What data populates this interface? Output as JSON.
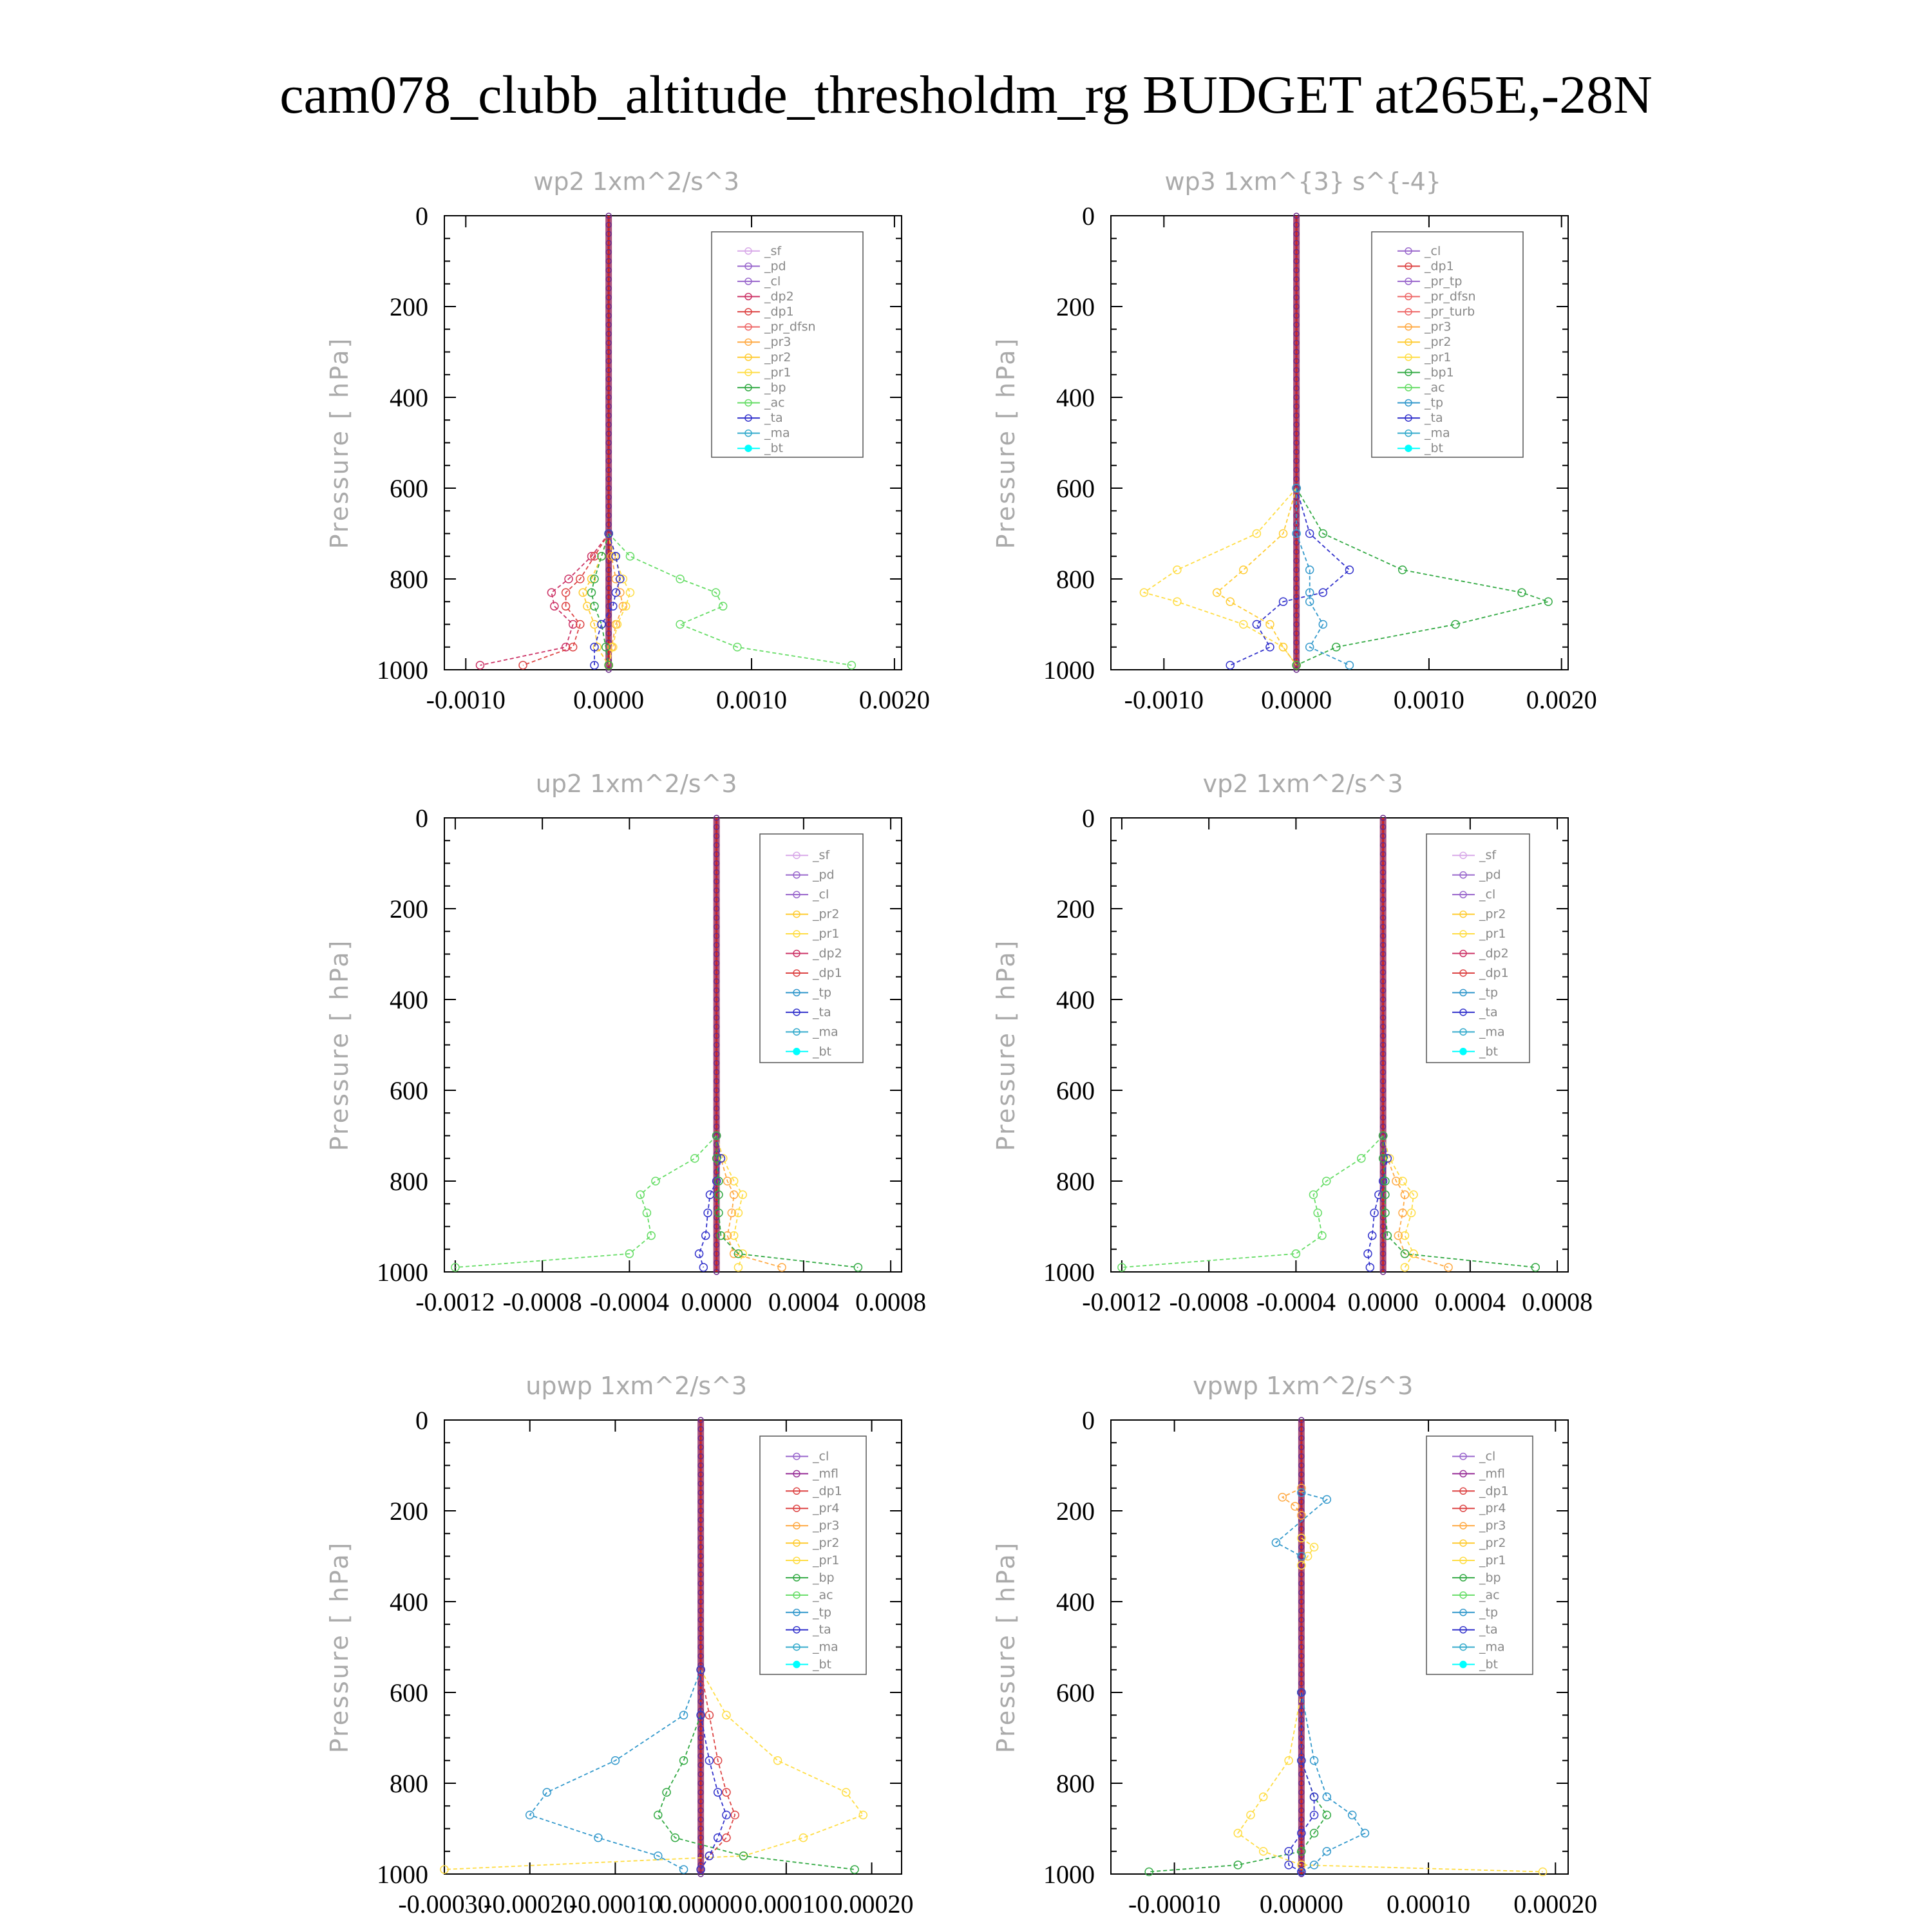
{
  "title": "cam078_clubb_altitude_thresholdm_rg  BUDGET at265E,-28N",
  "colors": {
    "sf": "#d8a8e8",
    "pd": "#9966cc",
    "cl": "#9966cc",
    "mfl": "#993399",
    "dp2": "#cc3366",
    "dp1": "#dd4444",
    "pr_dfsn": "#ee6666",
    "pr_tp": "#9966cc",
    "pr_turb": "#ee6666",
    "pr4": "#dd4444",
    "pr3": "#ffaa44",
    "pr2": "#ffcc33",
    "pr1": "#ffdd44",
    "bp": "#33aa44",
    "bp1": "#33aa44",
    "ac": "#66dd66",
    "tp": "#3399cc",
    "ta": "#3333cc",
    "ma": "#33aacc",
    "bt": "#00ffff",
    "axis": "#000000"
  },
  "chart_data": [
    {
      "type": "line",
      "title": "wp2   1xm^2/s^3",
      "ylabel": "Pressure [ hPa]",
      "yticks": [
        "0",
        "200",
        "400",
        "600",
        "800",
        "1000"
      ],
      "xticks": [
        "-0.0010",
        "0.0000",
        "0.0010",
        "0.0020"
      ],
      "xtick_values": [
        -0.001,
        0,
        0.001,
        0.002
      ],
      "xlim": [
        -0.00115,
        0.00205
      ],
      "ylim": [
        0,
        1000
      ],
      "legend": [
        "_sf",
        "_pd",
        "_cl",
        "_dp2",
        "_dp1",
        "_pr_dfsn",
        "_pr3",
        "_pr2",
        "_pr1",
        "_bp",
        "_ac",
        "_ta",
        "_ma",
        "_bt"
      ],
      "pressure": [
        700,
        750,
        800,
        830,
        860,
        900,
        950,
        990
      ],
      "series": [
        {
          "name": "_dp2",
          "color_key": "dp2",
          "x": [
            0,
            -0.00012,
            -0.00028,
            -0.0004,
            -0.00038,
            -0.00025,
            -0.0003,
            -0.0009
          ]
        },
        {
          "name": "_dp1",
          "color_key": "dp1",
          "x": [
            0,
            -0.0001,
            -0.0002,
            -0.0003,
            -0.0003,
            -0.0002,
            -0.00025,
            -0.0006
          ]
        },
        {
          "name": "_pr3",
          "color_key": "pr3",
          "x": [
            0,
            2e-05,
            5e-05,
            8e-05,
            0.0001,
            5e-05,
            2e-05,
            0
          ]
        },
        {
          "name": "_pr2",
          "color_key": "pr2",
          "x": [
            0,
            -5e-05,
            -0.00012,
            -0.00018,
            -0.00015,
            -0.0001,
            -8e-05,
            0
          ]
        },
        {
          "name": "_pr1",
          "color_key": "pr1",
          "x": [
            0,
            4e-05,
            0.0001,
            0.00015,
            0.00012,
            6e-05,
            3e-05,
            0
          ]
        },
        {
          "name": "_bp",
          "color_key": "bp",
          "x": [
            0,
            -5e-05,
            -0.0001,
            -0.00012,
            -0.0001,
            -5e-05,
            -2e-05,
            0
          ]
        },
        {
          "name": "_ac",
          "color_key": "ac",
          "x": [
            0,
            0.00015,
            0.0005,
            0.00075,
            0.0008,
            0.0005,
            0.0009,
            0.0017
          ]
        },
        {
          "name": "_ta",
          "color_key": "ta",
          "x": [
            0,
            5e-05,
            8e-05,
            5e-05,
            3e-05,
            -5e-05,
            -0.0001,
            -0.0001
          ]
        }
      ]
    },
    {
      "type": "line",
      "title": "wp3   1xm^{3} s^{-4}",
      "ylabel": "Pressure [ hPa]",
      "yticks": [
        "0",
        "200",
        "400",
        "600",
        "800",
        "1000"
      ],
      "xticks": [
        "-0.0010",
        "0.0000",
        "0.0010",
        "0.0020"
      ],
      "xtick_values": [
        -0.001,
        0,
        0.001,
        0.002
      ],
      "xlim": [
        -0.0014,
        0.00205
      ],
      "ylim": [
        0,
        1000
      ],
      "legend": [
        "_cl",
        "_dp1",
        "_pr_tp",
        "_pr_dfsn",
        "_pr_turb",
        "_pr3",
        "_pr2",
        "_pr1",
        "_bp1",
        "_ac",
        "_tp",
        "_ta",
        "_ma",
        "_bt"
      ],
      "pressure": [
        600,
        700,
        780,
        830,
        850,
        900,
        950,
        990
      ],
      "series": [
        {
          "name": "_pr1",
          "color_key": "pr1",
          "x": [
            0,
            -0.0003,
            -0.0009,
            -0.00115,
            -0.0009,
            -0.0004,
            -0.0001,
            0
          ]
        },
        {
          "name": "_pr2",
          "color_key": "pr2",
          "x": [
            0,
            -0.0001,
            -0.0004,
            -0.0006,
            -0.0005,
            -0.0002,
            -0.0001,
            0
          ]
        },
        {
          "name": "_bp1",
          "color_key": "bp1",
          "x": [
            0,
            0.0002,
            0.0008,
            0.0017,
            0.0019,
            0.0012,
            0.0003,
            0
          ]
        },
        {
          "name": "_ta",
          "color_key": "ta",
          "x": [
            0,
            0.0001,
            0.0004,
            0.0002,
            -0.0001,
            -0.0003,
            -0.0002,
            -0.0005
          ]
        },
        {
          "name": "_tp",
          "color_key": "tp",
          "x": [
            0,
            0,
            0.0001,
            0.0001,
            0.0001,
            0.0002,
            0.0001,
            0.0004
          ]
        }
      ]
    },
    {
      "type": "line",
      "title": "up2   1xm^2/s^3",
      "ylabel": "Pressure [ hPa]",
      "yticks": [
        "0",
        "200",
        "400",
        "600",
        "800",
        "1000"
      ],
      "xticks": [
        "-0.0012",
        "-0.0008",
        "-0.0004",
        "0.0000",
        "0.0004",
        "0.0008"
      ],
      "xtick_values": [
        -0.0012,
        -0.0008,
        -0.0004,
        0,
        0.0004,
        0.0008
      ],
      "xlim": [
        -0.00125,
        0.00085
      ],
      "ylim": [
        0,
        1000
      ],
      "legend": [
        "_sf",
        "_pd",
        "_cl",
        "_pr2",
        "_pr1",
        "_dp2",
        "_dp1",
        "_tp",
        "_ta",
        "_ma",
        "_bt"
      ],
      "pressure": [
        700,
        750,
        800,
        830,
        870,
        920,
        960,
        990
      ],
      "series": [
        {
          "name": "_dp1",
          "color_key": "ac",
          "x": [
            0,
            -0.0001,
            -0.00028,
            -0.00035,
            -0.00032,
            -0.0003,
            -0.0004,
            -0.0012
          ]
        },
        {
          "name": "_pr1",
          "color_key": "pr1",
          "x": [
            0,
            3e-05,
            8e-05,
            0.00012,
            0.0001,
            8e-05,
            0.00012,
            0.0001
          ]
        },
        {
          "name": "_pr2",
          "color_key": "pr3",
          "x": [
            0,
            2e-05,
            5e-05,
            8e-05,
            7e-05,
            5e-05,
            8e-05,
            0.0003
          ]
        },
        {
          "name": "_ta",
          "color_key": "ta",
          "x": [
            0,
            2e-05,
            0,
            -3e-05,
            -4e-05,
            -5e-05,
            -8e-05,
            -6e-05
          ]
        },
        {
          "name": "_dp2",
          "color_key": "bp",
          "x": [
            0,
            0,
            1e-05,
            1e-05,
            1e-05,
            2e-05,
            0.0001,
            0.00065
          ]
        }
      ]
    },
    {
      "type": "line",
      "title": "vp2   1xm^2/s^3",
      "ylabel": "Pressure [ hPa]",
      "yticks": [
        "0",
        "200",
        "400",
        "600",
        "800",
        "1000"
      ],
      "xticks": [
        "-0.0012",
        "-0.0008",
        "-0.0004",
        "0.0000",
        "0.0004",
        "0.0008"
      ],
      "xtick_values": [
        -0.0012,
        -0.0008,
        -0.0004,
        0,
        0.0004,
        0.0008
      ],
      "xlim": [
        -0.00125,
        0.00085
      ],
      "ylim": [
        0,
        1000
      ],
      "legend": [
        "_sf",
        "_pd",
        "_cl",
        "_pr2",
        "_pr1",
        "_dp2",
        "_dp1",
        "_tp",
        "_ta",
        "_ma",
        "_bt"
      ],
      "pressure": [
        700,
        750,
        800,
        830,
        870,
        920,
        960,
        990
      ],
      "series": [
        {
          "name": "_dp1",
          "color_key": "ac",
          "x": [
            0,
            -0.0001,
            -0.00026,
            -0.00032,
            -0.0003,
            -0.00028,
            -0.0004,
            -0.0012
          ]
        },
        {
          "name": "_pr1",
          "color_key": "pr1",
          "x": [
            0,
            3e-05,
            9e-05,
            0.00014,
            0.00013,
            0.0001,
            0.00014,
            0.0001
          ]
        },
        {
          "name": "_pr2",
          "color_key": "pr3",
          "x": [
            0,
            2e-05,
            6e-05,
            0.0001,
            9e-05,
            7e-05,
            0.0001,
            0.0003
          ]
        },
        {
          "name": "_ta",
          "color_key": "ta",
          "x": [
            0,
            2e-05,
            0,
            -2e-05,
            -4e-05,
            -5e-05,
            -7e-05,
            -6e-05
          ]
        },
        {
          "name": "_dp2",
          "color_key": "bp",
          "x": [
            0,
            0,
            1e-05,
            1e-05,
            1e-05,
            2e-05,
            0.0001,
            0.0007
          ]
        }
      ]
    },
    {
      "type": "line",
      "title": "upwp   1xm^2/s^3",
      "ylabel": "Pressure [ hPa]",
      "yticks": [
        "0",
        "200",
        "400",
        "600",
        "800",
        "1000"
      ],
      "xticks": [
        "-0.00030",
        "-0.00020",
        "-0.00010",
        "0.00000",
        "0.00010",
        "0.00020"
      ],
      "xtick_values": [
        -0.0003,
        -0.0002,
        -0.0001,
        0,
        0.0001,
        0.0002
      ],
      "xlim": [
        -0.0003,
        0.000235
      ],
      "ylim": [
        0,
        1000
      ],
      "legend": [
        "_cl",
        "_mfl",
        "_dp1",
        "_pr4",
        "_pr3",
        "_pr2",
        "_pr1",
        "_bp",
        "_ac",
        "_tp",
        "_ta",
        "_ma",
        "_bt"
      ],
      "pressure": [
        550,
        650,
        750,
        820,
        870,
        920,
        960,
        990
      ],
      "series": [
        {
          "name": "_tp",
          "color_key": "tp",
          "x": [
            0,
            -2e-05,
            -0.0001,
            -0.00018,
            -0.0002,
            -0.00012,
            -5e-05,
            -2e-05
          ]
        },
        {
          "name": "_pr1",
          "color_key": "pr1",
          "x": [
            0,
            3e-05,
            9e-05,
            0.00017,
            0.00019,
            0.00012,
            5e-05,
            -0.0003
          ]
        },
        {
          "name": "_bp",
          "color_key": "bp",
          "x": [
            0,
            0,
            -2e-05,
            -4e-05,
            -5e-05,
            -3e-05,
            5e-05,
            0.00018
          ]
        },
        {
          "name": "_dp1",
          "color_key": "dp1",
          "x": [
            0,
            1e-05,
            2e-05,
            3e-05,
            4e-05,
            3e-05,
            1e-05,
            0
          ]
        },
        {
          "name": "_ta",
          "color_key": "ta",
          "x": [
            0,
            0,
            1e-05,
            2e-05,
            3e-05,
            2e-05,
            1e-05,
            0
          ]
        }
      ]
    },
    {
      "type": "line",
      "title": "vpwp   1xm^2/s^3",
      "ylabel": "Pressure [ hPa]",
      "yticks": [
        "0",
        "200",
        "400",
        "600",
        "800",
        "1000"
      ],
      "xticks": [
        "-0.00010",
        "0.00000",
        "0.00010",
        "0.00020"
      ],
      "xtick_values": [
        -0.0001,
        0,
        0.0001,
        0.0002
      ],
      "xlim": [
        -0.00015,
        0.00021
      ],
      "ylim": [
        0,
        1000
      ],
      "legend": [
        "_cl",
        "_mfl",
        "_dp1",
        "_pr4",
        "_pr3",
        "_pr2",
        "_pr1",
        "_bp",
        "_ac",
        "_tp",
        "_ta",
        "_ma",
        "_bt"
      ],
      "pressure": [
        600,
        750,
        830,
        870,
        910,
        950,
        980,
        995
      ],
      "series": [
        {
          "name": "_pr1",
          "color_key": "pr1",
          "x": [
            0,
            -1e-05,
            -3e-05,
            -4e-05,
            -5e-05,
            -3e-05,
            0,
            0.00019
          ]
        },
        {
          "name": "_tp",
          "color_key": "tp",
          "x": [
            0,
            1e-05,
            2e-05,
            4e-05,
            5e-05,
            2e-05,
            1e-05,
            0
          ]
        },
        {
          "name": "_bp",
          "color_key": "bp",
          "x": [
            0,
            0,
            1e-05,
            2e-05,
            1e-05,
            0,
            -5e-05,
            -0.00012
          ]
        },
        {
          "name": "_ta",
          "color_key": "ta",
          "x": [
            0,
            0,
            1e-05,
            1e-05,
            0,
            -1e-05,
            -1e-05,
            0
          ]
        }
      ],
      "upper_series": [
        {
          "name": "_pr2",
          "color_key": "pr3",
          "pressure": [
            150,
            170,
            190,
            210
          ],
          "x": [
            0,
            -1.5e-05,
            -5e-06,
            0
          ]
        },
        {
          "name": "_pr1",
          "color_key": "pr1",
          "pressure": [
            260,
            280,
            300,
            320
          ],
          "x": [
            0,
            1e-05,
            5e-06,
            0
          ]
        },
        {
          "name": "_tp",
          "color_key": "tp",
          "pressure": [
            160,
            175,
            270,
            300
          ],
          "x": [
            0,
            2e-05,
            -2e-05,
            0
          ]
        }
      ]
    }
  ]
}
